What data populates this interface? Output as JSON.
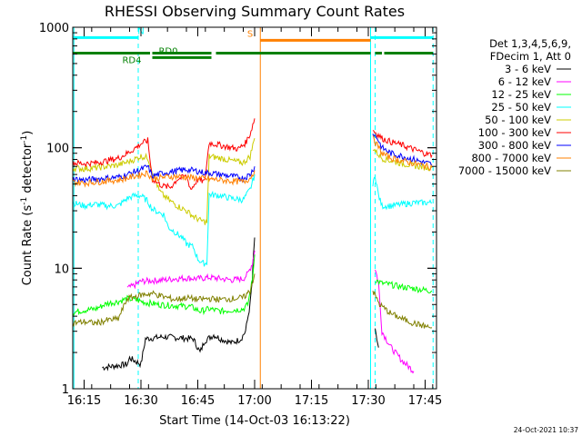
{
  "chart_data": {
    "type": "line",
    "title": "RHESSI Observing Summary Count Rates",
    "xlabel": "Start Time (14-Oct-03 16:13:22)",
    "ylabel_parts": [
      "Count Rate (s",
      "-1",
      " detector",
      "-1",
      ")"
    ],
    "y_scale": "log",
    "xlim_minutes": [
      16.2,
      17.8
    ],
    "ylim": [
      1,
      1000
    ],
    "x_ticks": [
      {
        "t": 16.25,
        "label": "16:15"
      },
      {
        "t": 16.5,
        "label": "16:30"
      },
      {
        "t": 16.75,
        "label": "16:45"
      },
      {
        "t": 17.0,
        "label": "17:00"
      },
      {
        "t": 17.25,
        "label": "17:15"
      },
      {
        "t": 17.5,
        "label": "17:30"
      },
      {
        "t": 17.75,
        "label": "17:45"
      }
    ],
    "y_ticks": [
      {
        "v": 1,
        "label": "1"
      },
      {
        "v": 10,
        "label": "10"
      },
      {
        "v": 100,
        "label": "100"
      },
      {
        "v": 1000,
        "label": "1000"
      }
    ],
    "legend": {
      "header": [
        "Det 1,3,4,5,6,9,",
        "FDecim 1, Att 0"
      ],
      "placement": "right"
    },
    "series": [
      {
        "name": "3 - 6 keV",
        "color": "#000000",
        "points": [
          [
            16.33,
            1.5
          ],
          [
            16.44,
            1.6
          ],
          [
            16.45,
            1.8
          ],
          [
            16.5,
            1.6
          ],
          [
            16.52,
            2.6
          ],
          [
            16.6,
            2.7
          ],
          [
            16.73,
            2.6
          ],
          [
            16.76,
            2.0
          ],
          [
            16.78,
            2.5
          ],
          [
            16.82,
            2.8
          ],
          [
            16.85,
            2.6
          ],
          [
            16.9,
            2.4
          ],
          [
            16.94,
            2.6
          ],
          [
            16.96,
            3.0
          ],
          [
            16.98,
            5.0
          ],
          [
            16.99,
            8.0
          ],
          [
            16.995,
            13
          ],
          [
            17.0,
            18
          ]
        ],
        "points2": [
          [
            17.53,
            3.0
          ],
          [
            17.545,
            2.2
          ]
        ]
      },
      {
        "name": "6 - 12 keV",
        "color": "#ff00ff",
        "points": [
          [
            16.44,
            6.8
          ],
          [
            16.47,
            7.2
          ],
          [
            16.5,
            7.8
          ],
          [
            16.55,
            7.9
          ],
          [
            16.6,
            8.0
          ],
          [
            16.65,
            8.2
          ],
          [
            16.7,
            8.3
          ],
          [
            16.75,
            8.2
          ],
          [
            16.8,
            8.4
          ],
          [
            16.85,
            8.2
          ],
          [
            16.9,
            8.0
          ],
          [
            16.95,
            8.2
          ],
          [
            16.97,
            9.0
          ],
          [
            16.99,
            11
          ],
          [
            17.0,
            14
          ]
        ],
        "points2": [
          [
            17.53,
            10
          ],
          [
            17.545,
            7.5
          ],
          [
            17.56,
            3.0
          ],
          [
            17.6,
            2.2
          ],
          [
            17.65,
            1.7
          ],
          [
            17.7,
            1.4
          ]
        ]
      },
      {
        "name": "12 - 25 keV",
        "color": "#00ff00",
        "points": [
          [
            16.2,
            4.3
          ],
          [
            16.25,
            4.5
          ],
          [
            16.3,
            4.6
          ],
          [
            16.35,
            5.1
          ],
          [
            16.4,
            5.3
          ],
          [
            16.44,
            5.6
          ],
          [
            16.47,
            5.5
          ],
          [
            16.52,
            5.2
          ],
          [
            16.58,
            5.0
          ],
          [
            16.65,
            4.9
          ],
          [
            16.72,
            4.8
          ],
          [
            16.76,
            4.4
          ],
          [
            16.8,
            4.6
          ],
          [
            16.85,
            4.4
          ],
          [
            16.9,
            4.5
          ],
          [
            16.95,
            4.6
          ],
          [
            16.97,
            5.0
          ],
          [
            16.99,
            8.0
          ],
          [
            17.0,
            13
          ]
        ],
        "points2": [
          [
            17.53,
            8.0
          ],
          [
            17.56,
            7.5
          ],
          [
            17.6,
            7.3
          ],
          [
            17.65,
            7.0
          ],
          [
            17.7,
            6.8
          ],
          [
            17.75,
            6.6
          ],
          [
            17.78,
            6.5
          ]
        ]
      },
      {
        "name": "25 - 50 keV",
        "color": "#00ffff",
        "points": [
          [
            16.2,
            35
          ],
          [
            16.25,
            33
          ],
          [
            16.3,
            34
          ],
          [
            16.35,
            33
          ],
          [
            16.4,
            33
          ],
          [
            16.44,
            38
          ],
          [
            16.47,
            40
          ],
          [
            16.5,
            40
          ],
          [
            16.53,
            36
          ],
          [
            16.55,
            31
          ],
          [
            16.58,
            29
          ],
          [
            16.6,
            28
          ],
          [
            16.62,
            22
          ],
          [
            16.65,
            20
          ],
          [
            16.68,
            18
          ],
          [
            16.7,
            16
          ],
          [
            16.73,
            15
          ],
          [
            16.75,
            12
          ],
          [
            16.77,
            11
          ],
          [
            16.79,
            11
          ],
          [
            16.8,
            41
          ],
          [
            16.85,
            40
          ],
          [
            16.9,
            38
          ],
          [
            16.95,
            37
          ],
          [
            16.98,
            45
          ],
          [
            17.0,
            60
          ]
        ],
        "points2": [
          [
            17.52,
            48
          ],
          [
            17.53,
            60
          ],
          [
            17.545,
            40
          ],
          [
            17.56,
            33
          ],
          [
            17.6,
            33
          ],
          [
            17.65,
            34
          ],
          [
            17.7,
            35
          ],
          [
            17.78,
            35
          ]
        ]
      },
      {
        "name": "50 - 100 keV",
        "color": "#cccc00",
        "points": [
          [
            16.2,
            68
          ],
          [
            16.25,
            67
          ],
          [
            16.3,
            68
          ],
          [
            16.35,
            70
          ],
          [
            16.4,
            72
          ],
          [
            16.44,
            76
          ],
          [
            16.47,
            80
          ],
          [
            16.5,
            85
          ],
          [
            16.53,
            83
          ],
          [
            16.55,
            64
          ],
          [
            16.58,
            44
          ],
          [
            16.6,
            40
          ],
          [
            16.63,
            36
          ],
          [
            16.66,
            33
          ],
          [
            16.7,
            30
          ],
          [
            16.73,
            27
          ],
          [
            16.76,
            25
          ],
          [
            16.79,
            24
          ],
          [
            16.8,
            85
          ],
          [
            16.85,
            82
          ],
          [
            16.9,
            78
          ],
          [
            16.95,
            75
          ],
          [
            16.98,
            85
          ],
          [
            17.0,
            120
          ]
        ],
        "points2": [
          [
            17.52,
            100
          ],
          [
            17.54,
            90
          ],
          [
            17.56,
            82
          ],
          [
            17.6,
            78
          ],
          [
            17.65,
            74
          ],
          [
            17.7,
            71
          ],
          [
            17.75,
            69
          ],
          [
            17.78,
            68
          ]
        ]
      },
      {
        "name": "100 - 300 keV",
        "color": "#ff0000",
        "points": [
          [
            16.2,
            75
          ],
          [
            16.25,
            74
          ],
          [
            16.3,
            75
          ],
          [
            16.35,
            78
          ],
          [
            16.4,
            82
          ],
          [
            16.44,
            90
          ],
          [
            16.47,
            98
          ],
          [
            16.5,
            108
          ],
          [
            16.53,
            115
          ],
          [
            16.55,
            55
          ],
          [
            16.58,
            50
          ],
          [
            16.6,
            48
          ],
          [
            16.63,
            47
          ],
          [
            16.66,
            55
          ],
          [
            16.7,
            58
          ],
          [
            16.72,
            45
          ],
          [
            16.75,
            55
          ],
          [
            16.78,
            52
          ],
          [
            16.8,
            110
          ],
          [
            16.85,
            105
          ],
          [
            16.9,
            100
          ],
          [
            16.93,
            98
          ],
          [
            16.96,
            110
          ],
          [
            16.98,
            130
          ],
          [
            17.0,
            175
          ]
        ],
        "points2": [
          [
            17.52,
            140
          ],
          [
            17.54,
            130
          ],
          [
            17.56,
            120
          ],
          [
            17.6,
            112
          ],
          [
            17.65,
            105
          ],
          [
            17.7,
            97
          ],
          [
            17.75,
            90
          ],
          [
            17.78,
            87
          ]
        ]
      },
      {
        "name": "300 - 800 keV",
        "color": "#0000ff",
        "points": [
          [
            16.2,
            55
          ],
          [
            16.25,
            54
          ],
          [
            16.3,
            55
          ],
          [
            16.35,
            56
          ],
          [
            16.4,
            57
          ],
          [
            16.44,
            60
          ],
          [
            16.47,
            63
          ],
          [
            16.5,
            66
          ],
          [
            16.53,
            70
          ],
          [
            16.55,
            58
          ],
          [
            16.6,
            62
          ],
          [
            16.65,
            64
          ],
          [
            16.7,
            66
          ],
          [
            16.75,
            64
          ],
          [
            16.78,
            62
          ],
          [
            16.8,
            62
          ],
          [
            16.85,
            60
          ],
          [
            16.9,
            58
          ],
          [
            16.95,
            56
          ],
          [
            16.98,
            60
          ],
          [
            17.0,
            70
          ]
        ],
        "points2": [
          [
            17.52,
            130
          ],
          [
            17.54,
            120
          ],
          [
            17.56,
            100
          ],
          [
            17.6,
            90
          ],
          [
            17.65,
            85
          ],
          [
            17.7,
            80
          ],
          [
            17.75,
            75
          ],
          [
            17.78,
            73
          ]
        ]
      },
      {
        "name": "800 - 7000 keV",
        "color": "#ff8000",
        "points": [
          [
            16.2,
            52
          ],
          [
            16.25,
            51
          ],
          [
            16.3,
            52
          ],
          [
            16.35,
            53
          ],
          [
            16.4,
            54
          ],
          [
            16.44,
            56
          ],
          [
            16.47,
            58
          ],
          [
            16.5,
            60
          ],
          [
            16.53,
            62
          ],
          [
            16.55,
            55
          ],
          [
            16.6,
            57
          ],
          [
            16.65,
            58
          ],
          [
            16.7,
            57
          ],
          [
            16.75,
            56
          ],
          [
            16.8,
            55
          ],
          [
            16.85,
            54
          ],
          [
            16.9,
            53
          ],
          [
            16.95,
            52
          ],
          [
            16.98,
            56
          ],
          [
            17.0,
            65
          ]
        ],
        "points2": [
          [
            17.52,
            120
          ],
          [
            17.54,
            105
          ],
          [
            17.56,
            90
          ],
          [
            17.6,
            82
          ],
          [
            17.65,
            78
          ],
          [
            17.7,
            74
          ],
          [
            17.75,
            71
          ],
          [
            17.78,
            69
          ]
        ]
      },
      {
        "name": "7000 - 15000 keV",
        "color": "#808000",
        "points": [
          [
            16.2,
            3.5
          ],
          [
            16.25,
            3.6
          ],
          [
            16.3,
            3.5
          ],
          [
            16.35,
            3.7
          ],
          [
            16.4,
            3.8
          ],
          [
            16.44,
            5.6
          ],
          [
            16.47,
            5.8
          ],
          [
            16.5,
            6.0
          ],
          [
            16.55,
            6.2
          ],
          [
            16.6,
            5.8
          ],
          [
            16.65,
            5.5
          ],
          [
            16.7,
            5.7
          ],
          [
            16.75,
            5.5
          ],
          [
            16.8,
            5.6
          ],
          [
            16.85,
            5.5
          ],
          [
            16.9,
            5.6
          ],
          [
            16.95,
            5.7
          ],
          [
            16.98,
            6.5
          ],
          [
            17.0,
            9.0
          ]
        ],
        "points2": [
          [
            17.52,
            6.5
          ],
          [
            17.55,
            5.0
          ],
          [
            17.6,
            4.2
          ],
          [
            17.65,
            3.8
          ],
          [
            17.7,
            3.5
          ],
          [
            17.75,
            3.3
          ],
          [
            17.78,
            3.2
          ]
        ]
      }
    ],
    "vertical_lines": [
      {
        "t": 16.205,
        "color": "#00ffff",
        "dashed": false
      },
      {
        "t": 16.488,
        "color": "#00ffff",
        "dashed": true
      },
      {
        "t": 17.025,
        "color": "#ff8000",
        "dashed": false
      },
      {
        "t": 17.51,
        "color": "#00ffff",
        "dashed": false
      },
      {
        "t": 17.53,
        "color": "#00ffff",
        "dashed": true
      },
      {
        "t": 17.785,
        "color": "#00ffff",
        "dashed": true
      }
    ],
    "bars": [
      {
        "label": "N",
        "color": "#00ffff",
        "y_value": 820,
        "segments": [
          [
            16.2,
            16.49
          ],
          [
            17.51,
            17.785
          ]
        ],
        "label_t": 16.5,
        "label_pos": "above"
      },
      {
        "label": "S",
        "color": "#ff8000",
        "y_value": 780,
        "segments": [
          [
            17.025,
            17.51
          ]
        ],
        "label_t": 16.98,
        "label_pos": "above"
      },
      {
        "label": "RD4",
        "color": "#008000",
        "y_value": 610,
        "segments": [
          [
            16.2,
            16.54
          ],
          [
            16.55,
            16.81
          ],
          [
            16.83,
            17.51
          ],
          [
            17.53,
            17.56
          ],
          [
            17.57,
            17.785
          ]
        ],
        "label_t": 16.46,
        "label_pos": "below"
      },
      {
        "label": "RD0",
        "color": "#008000",
        "y_value": 560,
        "segments": [
          [
            16.55,
            16.81
          ]
        ],
        "label_t": 16.62,
        "label_pos": "above"
      }
    ],
    "timestamp": "24-Oct-2021 10:37"
  }
}
